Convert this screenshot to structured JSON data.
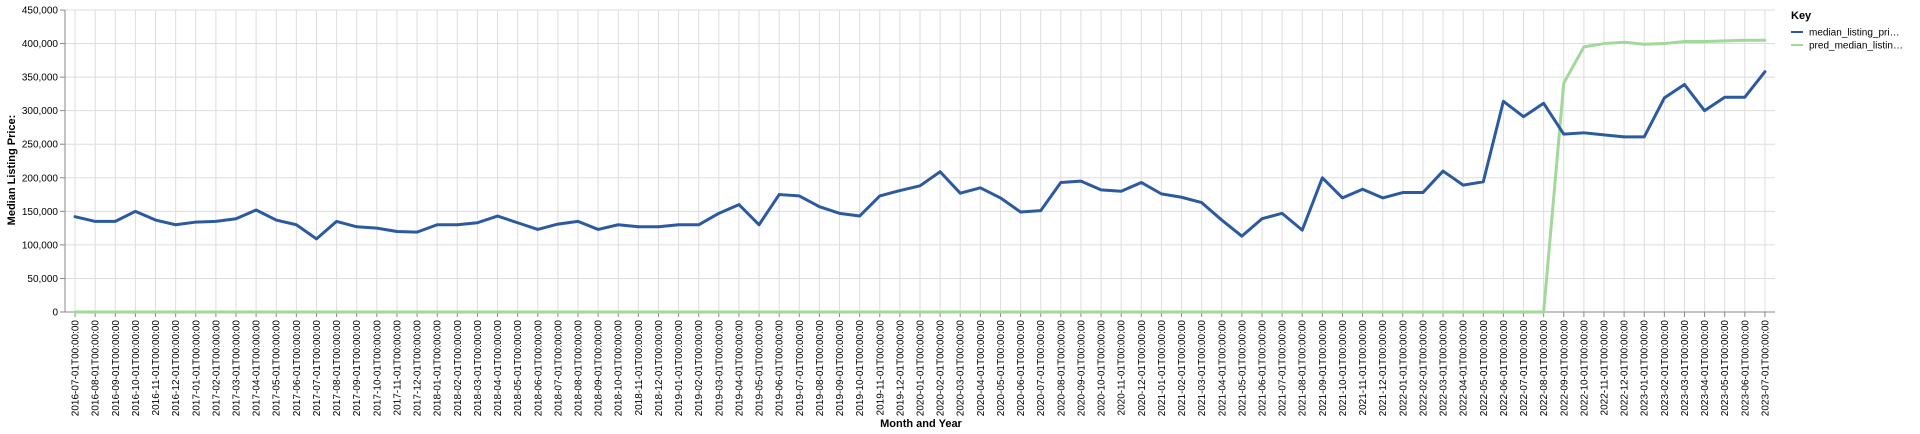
{
  "chart_data": {
    "type": "line",
    "xlabel": "Month and Year",
    "ylabel": "Median Listing Price:",
    "ylim": [
      0,
      450000
    ],
    "yticks": [
      0,
      50000,
      100000,
      150000,
      200000,
      250000,
      300000,
      350000,
      400000,
      450000
    ],
    "ytick_labels": [
      "0",
      "50,000",
      "100,000",
      "150,000",
      "200,000",
      "250,000",
      "300,000",
      "350,000",
      "400,000",
      "450,000"
    ],
    "grid": true,
    "legend": {
      "title": "Key",
      "placement": "top-right"
    },
    "x": [
      "2016-07-01T00:00:00",
      "2016-08-01T00:00:00",
      "2016-09-01T00:00:00",
      "2016-10-01T00:00:00",
      "2016-11-01T00:00:00",
      "2016-12-01T00:00:00",
      "2017-01-01T00:00:00",
      "2017-02-01T00:00:00",
      "2017-03-01T00:00:00",
      "2017-04-01T00:00:00",
      "2017-05-01T00:00:00",
      "2017-06-01T00:00:00",
      "2017-07-01T00:00:00",
      "2017-08-01T00:00:00",
      "2017-09-01T00:00:00",
      "2017-10-01T00:00:00",
      "2017-11-01T00:00:00",
      "2017-12-01T00:00:00",
      "2018-01-01T00:00:00",
      "2018-02-01T00:00:00",
      "2018-03-01T00:00:00",
      "2018-04-01T00:00:00",
      "2018-05-01T00:00:00",
      "2018-06-01T00:00:00",
      "2018-07-01T00:00:00",
      "2018-08-01T00:00:00",
      "2018-09-01T00:00:00",
      "2018-10-01T00:00:00",
      "2018-11-01T00:00:00",
      "2018-12-01T00:00:00",
      "2019-01-01T00:00:00",
      "2019-02-01T00:00:00",
      "2019-03-01T00:00:00",
      "2019-04-01T00:00:00",
      "2019-05-01T00:00:00",
      "2019-06-01T00:00:00",
      "2019-07-01T00:00:00",
      "2019-08-01T00:00:00",
      "2019-09-01T00:00:00",
      "2019-10-01T00:00:00",
      "2019-11-01T00:00:00",
      "2019-12-01T00:00:00",
      "2020-01-01T00:00:00",
      "2020-02-01T00:00:00",
      "2020-03-01T00:00:00",
      "2020-04-01T00:00:00",
      "2020-05-01T00:00:00",
      "2020-06-01T00:00:00",
      "2020-07-01T00:00:00",
      "2020-08-01T00:00:00",
      "2020-09-01T00:00:00",
      "2020-10-01T00:00:00",
      "2020-11-01T00:00:00",
      "2020-12-01T00:00:00",
      "2021-01-01T00:00:00",
      "2021-02-01T00:00:00",
      "2021-03-01T00:00:00",
      "2021-04-01T00:00:00",
      "2021-05-01T00:00:00",
      "2021-06-01T00:00:00",
      "2021-07-01T00:00:00",
      "2021-08-01T00:00:00",
      "2021-09-01T00:00:00",
      "2021-10-01T00:00:00",
      "2021-11-01T00:00:00",
      "2021-12-01T00:00:00",
      "2022-01-01T00:00:00",
      "2022-02-01T00:00:00",
      "2022-03-01T00:00:00",
      "2022-04-01T00:00:00",
      "2022-05-01T00:00:00",
      "2022-06-01T00:00:00",
      "2022-07-01T00:00:00",
      "2022-08-01T00:00:00",
      "2022-09-01T00:00:00",
      "2022-10-01T00:00:00",
      "2022-11-01T00:00:00",
      "2022-12-01T00:00:00",
      "2023-01-01T00:00:00",
      "2023-02-01T00:00:00",
      "2023-03-01T00:00:00",
      "2023-04-01T00:00:00",
      "2023-05-01T00:00:00",
      "2023-06-01T00:00:00",
      "2023-07-01T00:00:00"
    ],
    "series": [
      {
        "name": "median_listing_pri…",
        "color": "#2c5aa0",
        "values": [
          142000,
          135000,
          135000,
          150000,
          137000,
          130000,
          134000,
          135000,
          139000,
          152000,
          137000,
          130000,
          109000,
          135000,
          127000,
          125000,
          120000,
          119000,
          130000,
          130000,
          133000,
          143000,
          133000,
          123000,
          131000,
          135000,
          123000,
          130000,
          127000,
          127000,
          130000,
          130000,
          147000,
          160000,
          130000,
          175000,
          173000,
          157000,
          147000,
          143000,
          173000,
          181000,
          188000,
          209000,
          177000,
          185000,
          170000,
          149000,
          151000,
          193000,
          195000,
          182000,
          180000,
          193000,
          176000,
          171000,
          163000,
          137000,
          113000,
          139000,
          147000,
          122000,
          200000,
          170000,
          183000,
          170000,
          178000,
          178000,
          210000,
          189000,
          194000,
          314000,
          291000,
          311000,
          265000,
          267000,
          264000,
          261000,
          261000,
          319000,
          339000,
          300000,
          320000,
          320000,
          358000
        ]
      },
      {
        "name": "pred_median_listin…",
        "color": "#a1d99b",
        "values": [
          0,
          0,
          0,
          0,
          0,
          0,
          0,
          0,
          0,
          0,
          0,
          0,
          0,
          0,
          0,
          0,
          0,
          0,
          0,
          0,
          0,
          0,
          0,
          0,
          0,
          0,
          0,
          0,
          0,
          0,
          0,
          0,
          0,
          0,
          0,
          0,
          0,
          0,
          0,
          0,
          0,
          0,
          0,
          0,
          0,
          0,
          0,
          0,
          0,
          0,
          0,
          0,
          0,
          0,
          0,
          0,
          0,
          0,
          0,
          0,
          0,
          0,
          0,
          0,
          0,
          0,
          0,
          0,
          0,
          0,
          0,
          0,
          0,
          0,
          341000,
          395000,
          400000,
          402000,
          399000,
          400000,
          403000,
          403000,
          404000,
          405000,
          405000
        ]
      }
    ]
  }
}
